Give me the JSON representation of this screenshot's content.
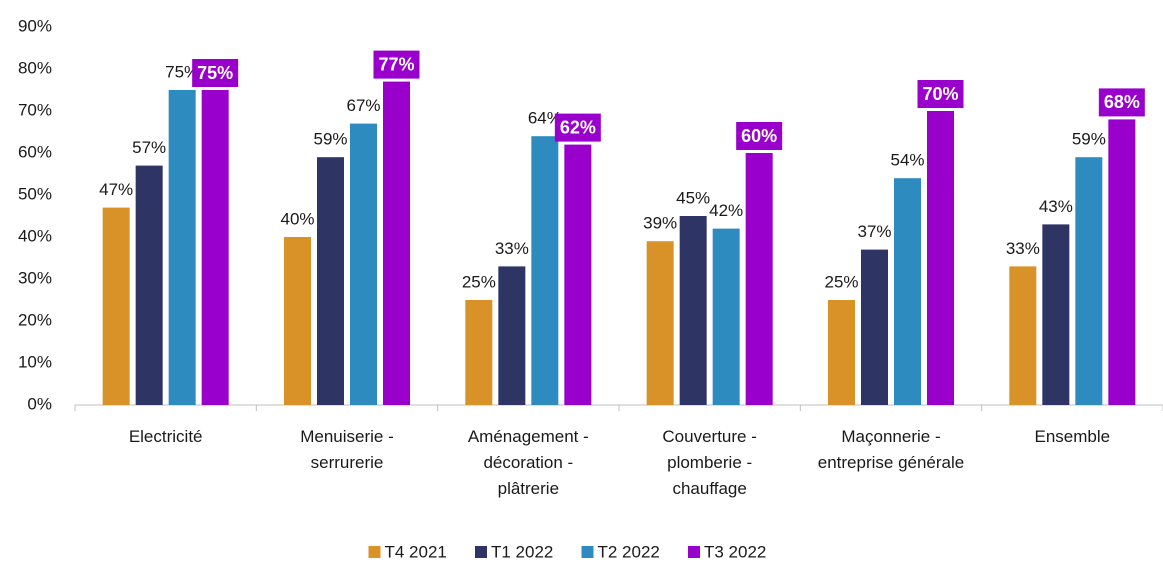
{
  "chart_data": {
    "type": "bar",
    "categories": [
      "Electricité",
      "Menuiserie - serrurerie",
      "Aménagement - décoration - plâtrerie",
      "Couverture - plomberie - chauffage",
      "Maçonnerie - entreprise générale",
      "Ensemble"
    ],
    "series": [
      {
        "name": "T4 2021",
        "color": "#d99228",
        "values": [
          47,
          40,
          25,
          39,
          25,
          33
        ],
        "value_labels": [
          "47%",
          "40%",
          "25%",
          "39%",
          "25%",
          "33%"
        ]
      },
      {
        "name": "T1 2022",
        "color": "#2e3464",
        "values": [
          57,
          59,
          33,
          45,
          37,
          43
        ],
        "value_labels": [
          "57%",
          "59%",
          "33%",
          "45%",
          "37%",
          "43%"
        ]
      },
      {
        "name": "T2 2022",
        "color": "#2e8bbf",
        "values": [
          75,
          67,
          64,
          42,
          54,
          59
        ],
        "value_labels": [
          "75%",
          "67%",
          "64%",
          "42%",
          "54%",
          "59%"
        ]
      },
      {
        "name": "T3 2022",
        "color": "#9900cc",
        "values": [
          75,
          77,
          62,
          60,
          70,
          68
        ],
        "value_labels": [
          "75%",
          "77%",
          "62%",
          "60%",
          "70%",
          "68%"
        ]
      }
    ],
    "ylim": [
      0,
      90
    ],
    "yticks": [
      {
        "value": 0,
        "label": "0%"
      },
      {
        "value": 10,
        "label": "10%"
      },
      {
        "value": 20,
        "label": "20%"
      },
      {
        "value": 30,
        "label": "30%"
      },
      {
        "value": 40,
        "label": "40%"
      },
      {
        "value": 50,
        "label": "50%"
      },
      {
        "value": 60,
        "label": "60%"
      },
      {
        "value": 70,
        "label": "70%"
      },
      {
        "value": 80,
        "label": "80%"
      },
      {
        "value": 90,
        "label": "90%"
      }
    ],
    "grid": false,
    "legend": "bottom"
  }
}
